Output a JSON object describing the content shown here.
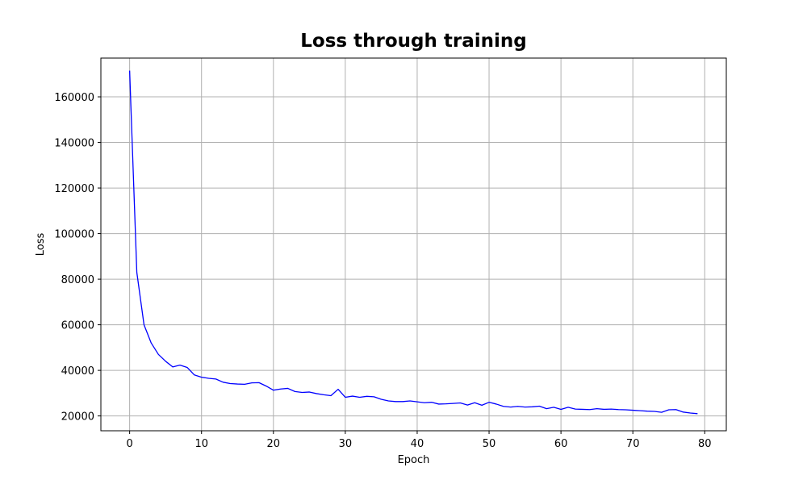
{
  "chart_data": {
    "type": "line",
    "title": "Loss through training",
    "xlabel": "Epoch",
    "ylabel": "Loss",
    "xlim": [
      -4,
      83
    ],
    "ylim": [
      13500,
      177000
    ],
    "grid": true,
    "xticks": [
      0,
      10,
      20,
      30,
      40,
      50,
      60,
      70,
      80
    ],
    "yticks": [
      20000,
      40000,
      60000,
      80000,
      100000,
      120000,
      140000,
      160000
    ],
    "series": [
      {
        "color": "#0000ff",
        "x": [
          0,
          1,
          2,
          3,
          4,
          5,
          6,
          7,
          8,
          9,
          10,
          11,
          12,
          13,
          14,
          15,
          16,
          17,
          18,
          19,
          20,
          21,
          22,
          23,
          24,
          25,
          26,
          27,
          28,
          29,
          30,
          31,
          32,
          33,
          34,
          35,
          36,
          37,
          38,
          39,
          40,
          41,
          42,
          43,
          44,
          45,
          46,
          47,
          48,
          49,
          50,
          51,
          52,
          53,
          54,
          55,
          56,
          57,
          58,
          59,
          60,
          61,
          62,
          63,
          64,
          65,
          66,
          67,
          68,
          69,
          70,
          71,
          72,
          73,
          74,
          75,
          76,
          77,
          78,
          79
        ],
        "values": [
          171500,
          83000,
          60000,
          52000,
          47000,
          44000,
          41500,
          42300,
          41300,
          38000,
          37000,
          36500,
          36200,
          34800,
          34200,
          34000,
          33900,
          34500,
          34600,
          33100,
          31300,
          31800,
          32100,
          30700,
          30300,
          30500,
          29800,
          29300,
          28900,
          31700,
          28200,
          28700,
          28200,
          28600,
          28400,
          27300,
          26600,
          26300,
          26300,
          26600,
          26200,
          25800,
          26000,
          25200,
          25300,
          25500,
          25700,
          24800,
          25800,
          24700,
          26000,
          25200,
          24200,
          23900,
          24200,
          23900,
          24000,
          24300,
          23200,
          23800,
          22900,
          23800,
          23000,
          22900,
          22800,
          23200,
          22900,
          23000,
          22800,
          22700,
          22500,
          22300,
          22100,
          22000,
          21600,
          22700,
          22800,
          21700,
          21300,
          21000
        ]
      }
    ]
  }
}
